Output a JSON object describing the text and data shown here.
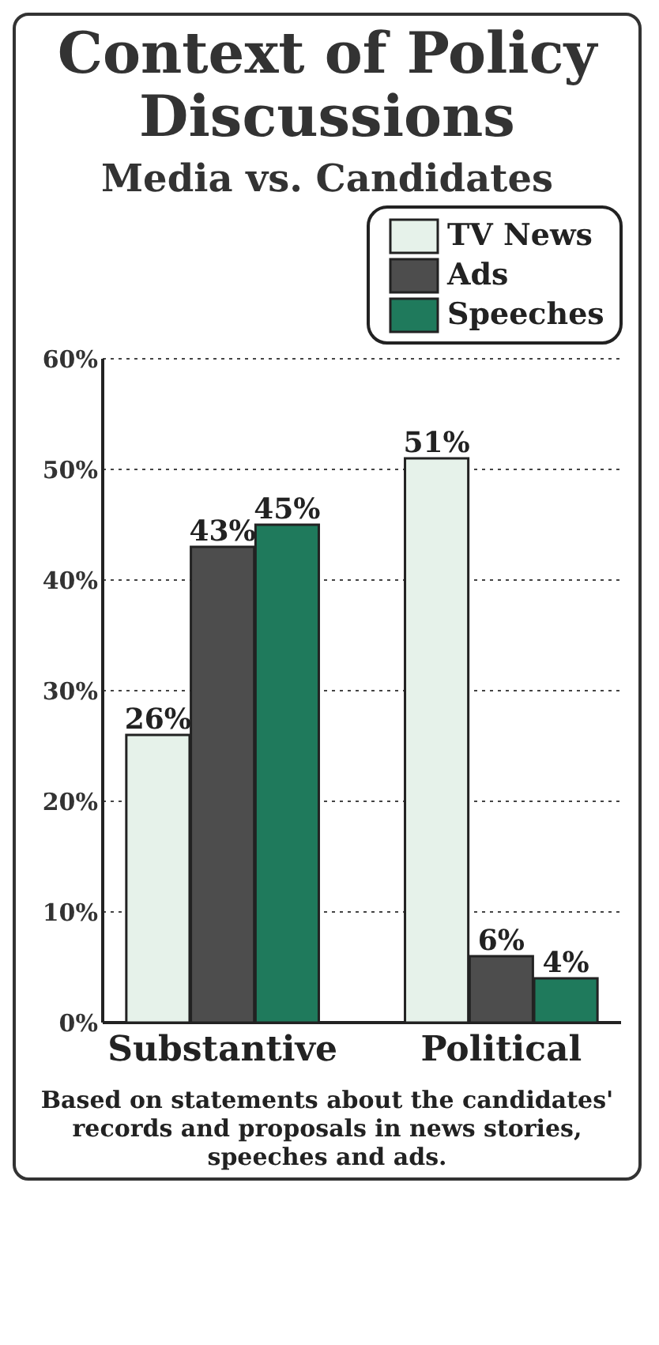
{
  "chart_data": {
    "type": "bar",
    "title": "Context of Policy Discussions",
    "subtitle": "Media vs. Candidates",
    "categories": [
      "Substantive",
      "Political"
    ],
    "series": [
      {
        "name": "TV News",
        "color": "#e6f2ea",
        "values": [
          26,
          51
        ],
        "value_labels": [
          "26%",
          "51%"
        ]
      },
      {
        "name": "Ads",
        "color": "#4d4d4d",
        "values": [
          43,
          6
        ],
        "value_labels": [
          "43%",
          "6%"
        ]
      },
      {
        "name": "Speeches",
        "color": "#1f7a5c",
        "values": [
          45,
          4
        ],
        "value_labels": [
          "45%",
          "4%"
        ]
      }
    ],
    "ylim": [
      0,
      60
    ],
    "yticks": [
      {
        "value": 0,
        "label": "0%"
      },
      {
        "value": 10,
        "label": "10%"
      },
      {
        "value": 20,
        "label": "20%"
      },
      {
        "value": 30,
        "label": "30%"
      },
      {
        "value": 40,
        "label": "40%"
      },
      {
        "value": 50,
        "label": "50%"
      },
      {
        "value": 60,
        "label": "60%"
      }
    ],
    "grid": "y",
    "legend": "top right",
    "annotations": [
      "Based on statements about the candidates' records and proposals in news stories, speeches and ads."
    ]
  }
}
